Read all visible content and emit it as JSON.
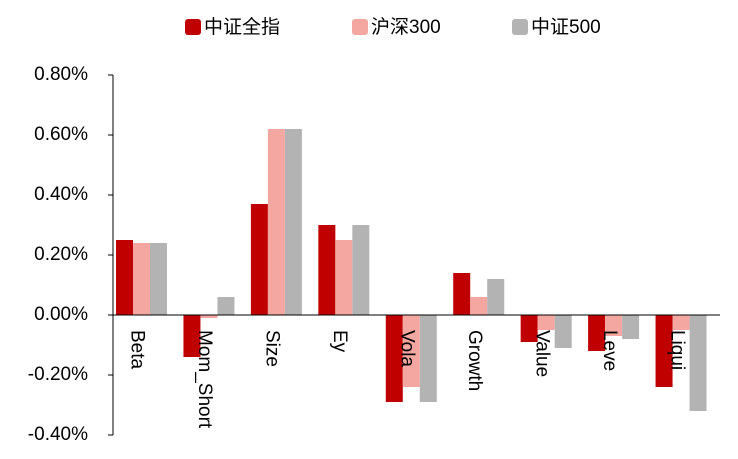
{
  "chart_data": {
    "type": "bar",
    "categories": [
      "Beta",
      "Mom_Short",
      "Size",
      "Ey",
      "Vola",
      "Growth",
      "Value",
      "Leve",
      "Liqui"
    ],
    "series": [
      {
        "name": "中证全指",
        "color": "#c00000",
        "values": [
          0.25,
          -0.14,
          0.37,
          0.3,
          -0.29,
          0.14,
          -0.09,
          -0.12,
          -0.24
        ]
      },
      {
        "name": "沪深300",
        "color": "#f4a6a0",
        "values": [
          0.24,
          -0.01,
          0.62,
          0.25,
          -0.24,
          0.06,
          -0.05,
          -0.07,
          -0.05
        ]
      },
      {
        "name": "中证500",
        "color": "#b3b3b3",
        "values": [
          0.24,
          0.06,
          0.62,
          0.3,
          -0.29,
          0.12,
          -0.11,
          -0.08,
          -0.32
        ]
      }
    ],
    "ylim": [
      -0.4,
      0.8
    ],
    "yticks": [
      {
        "value": 0.8,
        "label": "0.80%"
      },
      {
        "value": 0.6,
        "label": "0.60%"
      },
      {
        "value": 0.4,
        "label": "0.40%"
      },
      {
        "value": 0.2,
        "label": "0.20%"
      },
      {
        "value": 0,
        "label": "0.00%"
      },
      {
        "value": -0.2,
        "label": "-0.20%"
      },
      {
        "value": -0.4,
        "label": "-0.40%"
      }
    ],
    "legend": "top"
  }
}
